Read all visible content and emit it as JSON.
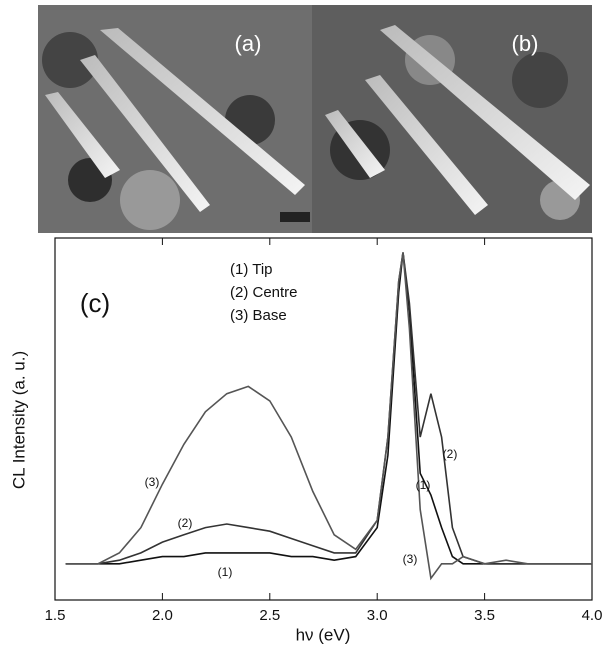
{
  "images": [
    {
      "label": "(a)"
    },
    {
      "label": "(b)"
    }
  ],
  "chart_data": {
    "type": "line",
    "xlabel": "hν (eV)",
    "ylabel": "CL Intensity (a. u.)",
    "x": [
      1.55,
      1.7,
      1.8,
      1.9,
      2.0,
      2.1,
      2.2,
      2.3,
      2.4,
      2.5,
      2.6,
      2.7,
      2.8,
      2.9,
      3.0,
      3.05,
      3.1,
      3.12,
      3.15,
      3.2,
      3.25,
      3.3,
      3.35,
      3.4,
      3.5,
      3.6,
      3.7,
      3.8,
      3.9,
      4.0
    ],
    "series": [
      {
        "name": "(1) Tip",
        "color": "#111111",
        "values": [
          0.1,
          0.1,
          0.1,
          0.11,
          0.12,
          0.12,
          0.13,
          0.13,
          0.13,
          0.13,
          0.12,
          0.12,
          0.11,
          0.12,
          0.2,
          0.4,
          0.85,
          0.96,
          0.8,
          0.35,
          0.29,
          0.2,
          0.12,
          0.1,
          0.1,
          0.1,
          0.1,
          0.1,
          0.1,
          0.1
        ]
      },
      {
        "name": "(2) Centre",
        "color": "#333333",
        "values": [
          0.1,
          0.1,
          0.11,
          0.13,
          0.16,
          0.18,
          0.2,
          0.21,
          0.2,
          0.19,
          0.17,
          0.15,
          0.13,
          0.13,
          0.22,
          0.45,
          0.88,
          0.96,
          0.82,
          0.45,
          0.57,
          0.45,
          0.2,
          0.12,
          0.1,
          0.1,
          0.1,
          0.1,
          0.1,
          0.1
        ]
      },
      {
        "name": "(3) Base",
        "color": "#555555",
        "values": [
          0.1,
          0.1,
          0.13,
          0.2,
          0.32,
          0.43,
          0.52,
          0.57,
          0.59,
          0.55,
          0.45,
          0.3,
          0.18,
          0.14,
          0.22,
          0.45,
          0.88,
          0.96,
          0.75,
          0.25,
          0.06,
          0.1,
          0.1,
          0.12,
          0.1,
          0.11,
          0.1,
          0.1,
          0.1,
          0.1
        ]
      }
    ],
    "xlim": [
      1.5,
      4.0
    ],
    "xticks": [
      1.5,
      {
        "value": 2,
        "label": "2.0"
      },
      2.5,
      {
        "value": 3,
        "label": "3.0"
      },
      3.5,
      {
        "value": 4,
        "label": "4.0"
      }
    ],
    "ylim": [
      0,
      1
    ],
    "annotations": [
      "(c)",
      "(3)",
      "(2)",
      "(1)",
      "(1)",
      "(2)",
      "(3)"
    ]
  }
}
